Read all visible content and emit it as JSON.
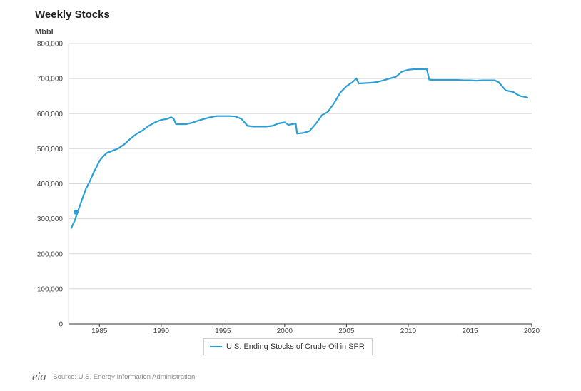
{
  "chart_data": {
    "type": "line",
    "title": "Weekly Stocks",
    "ylabel": "Mbbl",
    "xlabel": "",
    "ylim": [
      0,
      800000
    ],
    "xlim": [
      1982.5,
      2020
    ],
    "grid": true,
    "legend_position": "bottom",
    "y_ticks": [
      {
        "value": 0,
        "label": "0"
      },
      {
        "value": 100000,
        "label": "100,000"
      },
      {
        "value": 200000,
        "label": "200,000"
      },
      {
        "value": 300000,
        "label": "300,000"
      },
      {
        "value": 400000,
        "label": "400,000"
      },
      {
        "value": 500000,
        "label": "500,000"
      },
      {
        "value": 600000,
        "label": "600,000"
      },
      {
        "value": 700000,
        "label": "700,000"
      },
      {
        "value": 800000,
        "label": "800,000"
      }
    ],
    "x_ticks": [
      {
        "value": 1985,
        "label": "1985"
      },
      {
        "value": 1990,
        "label": "1990"
      },
      {
        "value": 1995,
        "label": "1995"
      },
      {
        "value": 2000,
        "label": "2000"
      },
      {
        "value": 2005,
        "label": "2005"
      },
      {
        "value": 2010,
        "label": "2010"
      },
      {
        "value": 2015,
        "label": "2015"
      },
      {
        "value": 2020,
        "label": "2020"
      }
    ],
    "series": [
      {
        "name": "U.S. Ending Stocks of Crude Oil in SPR",
        "color": "#2a9fd6",
        "marker": {
          "x": 1983.1,
          "y": 319000
        },
        "x": [
          1982.7,
          1983.0,
          1983.3,
          1983.6,
          1983.9,
          1984.2,
          1984.5,
          1984.8,
          1985.0,
          1985.3,
          1985.6,
          1985.9,
          1986.2,
          1986.5,
          1987.0,
          1987.5,
          1988.0,
          1988.5,
          1989.0,
          1989.5,
          1990.0,
          1990.5,
          1990.8,
          1991.0,
          1991.2,
          1992.0,
          1992.5,
          1993.0,
          1993.5,
          1994.0,
          1994.5,
          1995.0,
          1995.5,
          1996.0,
          1996.5,
          1997.0,
          1997.5,
          1998.0,
          1998.5,
          1999.0,
          1999.5,
          2000.0,
          2000.3,
          2000.6,
          2000.9,
          2001.0,
          2001.5,
          2002.0,
          2002.5,
          2003.0,
          2003.5,
          2004.0,
          2004.5,
          2005.0,
          2005.5,
          2005.8,
          2006.0,
          2006.5,
          2007.0,
          2007.5,
          2008.0,
          2008.5,
          2009.0,
          2009.5,
          2010.0,
          2010.5,
          2011.0,
          2011.5,
          2011.7,
          2012.0,
          2013.0,
          2014.0,
          2014.5,
          2015.0,
          2015.5,
          2016.0,
          2016.5,
          2017.0,
          2017.3,
          2017.6,
          2017.9,
          2018.2,
          2018.5,
          2018.8,
          2019.1,
          2019.4,
          2019.7
        ],
        "y": [
          272000,
          295000,
          325000,
          355000,
          385000,
          405000,
          430000,
          450000,
          465000,
          478000,
          488000,
          492000,
          496000,
          500000,
          512000,
          528000,
          542000,
          552000,
          565000,
          575000,
          582000,
          585000,
          590000,
          586000,
          570000,
          570000,
          574000,
          580000,
          585000,
          590000,
          593000,
          593000,
          593000,
          592000,
          585000,
          565000,
          563000,
          563000,
          563000,
          565000,
          572000,
          575000,
          568000,
          570000,
          572000,
          543000,
          545000,
          550000,
          570000,
          595000,
          605000,
          630000,
          660000,
          678000,
          690000,
          700000,
          686000,
          687000,
          688000,
          690000,
          695000,
          700000,
          705000,
          720000,
          725000,
          727000,
          727000,
          727000,
          697000,
          696000,
          696000,
          696000,
          695000,
          695000,
          694000,
          695000,
          695000,
          695000,
          690000,
          678000,
          666000,
          664000,
          662000,
          655000,
          650000,
          648000,
          645000
        ]
      }
    ]
  },
  "source_text": "Source: U.S. Energy Information Administration",
  "logo_text": "eia"
}
